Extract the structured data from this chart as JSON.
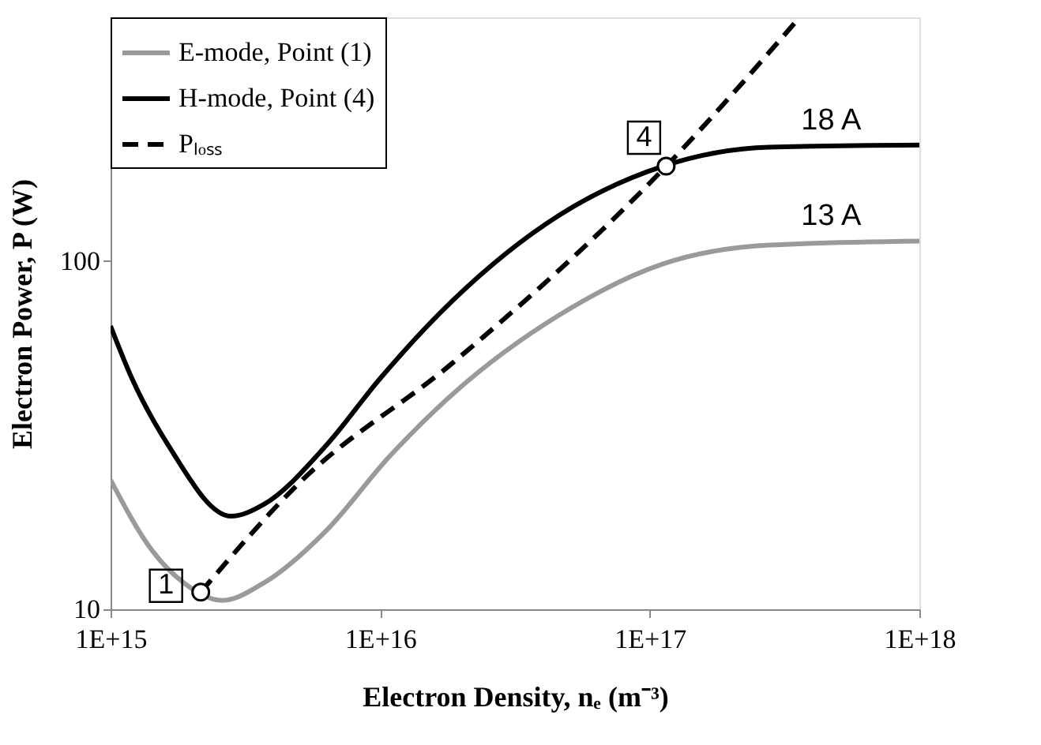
{
  "chart_data": {
    "type": "line",
    "xlabel": "Electron Density,  nₑ (m⁻³)",
    "ylabel": "Electron Power,  P (W)",
    "log": "xy",
    "xlim": [
      1000000000000000.0,
      1e+18
    ],
    "xticks": [
      {
        "value": 1000000000000000.0,
        "label": "1E+15"
      },
      {
        "value": 1e+16,
        "label": "1E+16"
      },
      {
        "value": 1e+17,
        "label": "1E+17"
      },
      {
        "value": 1e+18,
        "label": "1E+18"
      }
    ],
    "ylim": [
      10,
      500
    ],
    "yticks": [
      10,
      100
    ],
    "grid": false,
    "legend": "top left",
    "series": [
      {
        "name": "E-mode, Point (1)",
        "color": "#9a9a9a",
        "line_style": "solid",
        "x": [
          1000000000000000.0,
          1430000000000000.0,
          1870000000000000.0,
          2600000000000000.0,
          3700000000000000.0,
          6300000000000000.0,
          1.08e+16,
          1.86e+16,
          4.6e+16,
          1.12e+17,
          2.77e+17,
          1e+18
        ],
        "values": [
          23.5,
          14.7,
          11.9,
          10.6,
          11.9,
          16.8,
          27.4,
          41.5,
          69.8,
          98,
          111,
          114
        ]
      },
      {
        "name": "H-mode, Point (4)",
        "color": "#000000",
        "line_style": "solid",
        "x": [
          1000000000000000.0,
          1200000000000000.0,
          1640000000000000.0,
          2800000000000000.0,
          3700000000000000.0,
          6300000000000000.0,
          1e+16,
          1.86e+16,
          4.6e+16,
          1.12e+17,
          2.77e+17,
          1e+18
        ],
        "values": [
          65,
          46,
          29.5,
          18.5,
          20,
          29.5,
          46,
          77,
          135,
          187,
          212,
          215
        ]
      },
      {
        "name": "Pₗₒₛₛ",
        "color": "#000000",
        "line_style": "dashed",
        "x": [
          2160000000000000.0,
          5000000000000000.0,
          1.86e+16,
          1.15e+17,
          3.5e+17
        ],
        "values": [
          11.2,
          23,
          51,
          187,
          488
        ]
      },
      {
        "type": "scatter",
        "marker": "circle",
        "color": "#ffffff",
        "x": [
          2160000000000000.0,
          1.15e+17
        ],
        "values": [
          11.2,
          187
        ]
      }
    ],
    "annotations": [
      {
        "text": "18 A",
        "x": 6e+17,
        "y": 215
      },
      {
        "text": "13 A",
        "x": 6e+17,
        "y": 114
      },
      {
        "text": "1",
        "x": 2160000000000000.0,
        "y": 11.2
      },
      {
        "text": "4",
        "x": 1.15e+17,
        "y": 187
      }
    ]
  }
}
